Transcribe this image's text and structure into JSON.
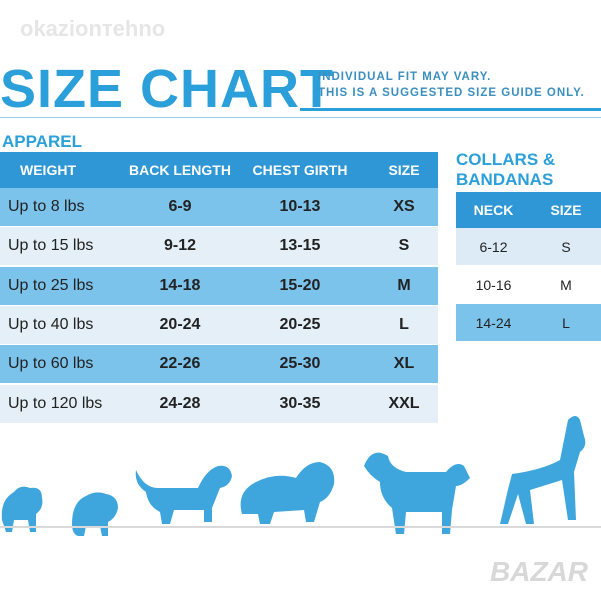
{
  "watermark": "okazionтehno",
  "header": {
    "title": "SIZE CHART",
    "note": [
      "INDIVIDUAL FIT MAY VARY.",
      "THIS IS A SUGGESTED SIZE GUIDE ONLY."
    ]
  },
  "apparel": {
    "title": "APPAREL",
    "columns": [
      "WEIGHT",
      "BACK LENGTH",
      "CHEST GIRTH",
      "SIZE"
    ],
    "rows": [
      [
        "Up to 8 lbs",
        "6-9",
        "10-13",
        "XS"
      ],
      [
        "Up to 15 lbs",
        "9-12",
        "13-15",
        "S"
      ],
      [
        "Up to 25 lbs",
        "14-18",
        "15-20",
        "M"
      ],
      [
        "Up to 40 lbs",
        "20-24",
        "20-25",
        "L"
      ],
      [
        "Up to 60 lbs",
        "22-26",
        "25-30",
        "XL"
      ],
      [
        "Up to 120 lbs",
        "24-28",
        "30-35",
        "XXL"
      ]
    ]
  },
  "collars": {
    "title": [
      "COLLARS &",
      "BANDANAS"
    ],
    "columns": [
      "NECK",
      "SIZE"
    ],
    "rows": [
      [
        "6-12",
        "S"
      ],
      [
        "10-16",
        "M"
      ],
      [
        "14-24",
        "L"
      ]
    ]
  },
  "logo": "BAZAR"
}
